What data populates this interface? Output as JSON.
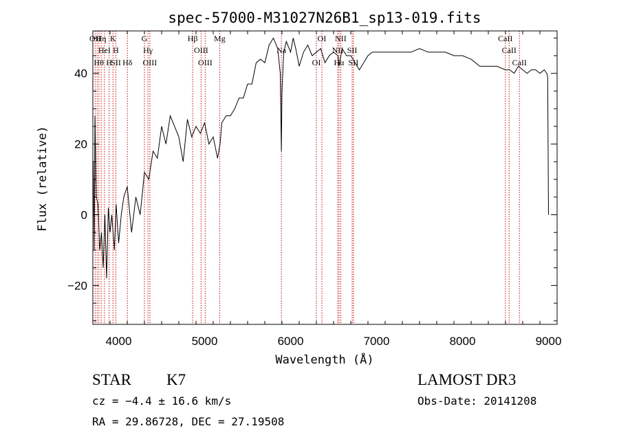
{
  "chart_data": {
    "type": "line",
    "title": "spec-57000-M31027N26B1_sp13-019.fits",
    "xlabel": "Wavelength (Å)",
    "ylabel": "Flux (relative)",
    "xlim": [
      3700,
      9100
    ],
    "ylim": [
      -31,
      52
    ],
    "xticks": [
      4000,
      5000,
      6000,
      7000,
      8000,
      9000
    ],
    "yticks": [
      -20,
      0,
      20,
      40
    ],
    "x_tick_labels": [
      "4000",
      "5000",
      "6000",
      "7000",
      "8000",
      "9000"
    ],
    "y_tick_labels": [
      "−20",
      "0",
      "20",
      "40"
    ],
    "grid": false,
    "series": [
      {
        "color": "#000000",
        "x": [
          3705,
          3715,
          3725,
          3740,
          3760,
          3780,
          3800,
          3820,
          3840,
          3860,
          3880,
          3900,
          3920,
          3950,
          3970,
          4000,
          4030,
          4060,
          4100,
          4150,
          4200,
          4250,
          4300,
          4350,
          4400,
          4450,
          4500,
          4550,
          4600,
          4650,
          4700,
          4750,
          4800,
          4850,
          4900,
          4950,
          5000,
          5050,
          5100,
          5150,
          5180,
          5200,
          5250,
          5300,
          5350,
          5400,
          5450,
          5500,
          5550,
          5600,
          5650,
          5700,
          5750,
          5800,
          5850,
          5880,
          5893,
          5900,
          5920,
          5950,
          6000,
          6030,
          6060,
          6100,
          6150,
          6200,
          6250,
          6300,
          6350,
          6400,
          6450,
          6500,
          6550,
          6563,
          6600,
          6650,
          6700,
          6750,
          6800,
          6850,
          6900,
          6950,
          7000,
          7100,
          7200,
          7300,
          7400,
          7500,
          7600,
          7700,
          7800,
          7900,
          8000,
          8100,
          8200,
          8300,
          8400,
          8500,
          8550,
          8600,
          8650,
          8700,
          8750,
          8800,
          8850,
          8900,
          8950,
          8980,
          8990,
          9000
        ],
        "y": [
          15,
          -10,
          28,
          5,
          3,
          -10,
          -5,
          -15,
          0,
          -18,
          2,
          -5,
          0,
          -10,
          3,
          -8,
          0,
          5,
          8,
          -5,
          5,
          0,
          12,
          10,
          18,
          16,
          25,
          20,
          28,
          25,
          22,
          15,
          27,
          22,
          25,
          23,
          26,
          20,
          22,
          16,
          20,
          26,
          28,
          28,
          30,
          33,
          33,
          37,
          37,
          43,
          44,
          43,
          48,
          50,
          47,
          40,
          18,
          35,
          46,
          49,
          46,
          50,
          47,
          42,
          46,
          48,
          45,
          46,
          47,
          43,
          45,
          46,
          45,
          42,
          47,
          45,
          45,
          43,
          41,
          43,
          45,
          46,
          46,
          46,
          46,
          46,
          46,
          47,
          46,
          46,
          46,
          45,
          45,
          44,
          42,
          42,
          42,
          41,
          41,
          40,
          42,
          41,
          40,
          41,
          41,
          40,
          41,
          40,
          39,
          0
        ]
      }
    ],
    "lines": [
      {
        "x": 3727,
        "labels": [
          "OII"
        ]
      },
      {
        "x": 3750,
        "labels": [
          ""
        ]
      },
      {
        "x": 3770,
        "labels": [
          "Hθ"
        ]
      },
      {
        "x": 3797,
        "labels": [
          "Hη"
        ]
      },
      {
        "x": 3835,
        "labels": [
          "HeI"
        ]
      },
      {
        "x": 3889,
        "labels": [
          "H"
        ]
      },
      {
        "x": 3934,
        "labels": [
          "K"
        ]
      },
      {
        "x": 3968,
        "labels": [
          "H",
          "SII"
        ]
      },
      {
        "x": 4102,
        "labels": [
          "Hδ"
        ]
      },
      {
        "x": 4300,
        "labels": [
          "G"
        ]
      },
      {
        "x": 4341,
        "labels": [
          "Hγ"
        ]
      },
      {
        "x": 4363,
        "labels": [
          "OIII"
        ]
      },
      {
        "x": 4861,
        "labels": [
          "Hβ"
        ]
      },
      {
        "x": 4959,
        "labels": [
          "OIII"
        ]
      },
      {
        "x": 5007,
        "labels": [
          "OIII"
        ]
      },
      {
        "x": 5175,
        "labels": [
          "Mg"
        ]
      },
      {
        "x": 5893,
        "labels": [
          "Na"
        ]
      },
      {
        "x": 6300,
        "labels": [
          "OI"
        ]
      },
      {
        "x": 6364,
        "labels": [
          "OI"
        ]
      },
      {
        "x": 6548,
        "labels": [
          "NII"
        ]
      },
      {
        "x": 6563,
        "labels": [
          "Hα"
        ]
      },
      {
        "x": 6583,
        "labels": [
          "NII"
        ]
      },
      {
        "x": 6716,
        "labels": [
          "SII"
        ]
      },
      {
        "x": 6731,
        "labels": [
          "SII"
        ]
      },
      {
        "x": 8498,
        "labels": [
          "CaII"
        ]
      },
      {
        "x": 8542,
        "labels": [
          "CaII"
        ]
      },
      {
        "x": 8662,
        "labels": [
          "CaII"
        ]
      }
    ]
  },
  "info": {
    "object_class": "STAR",
    "subclass": "K7",
    "redshift": "cz = −4.4 ± 16.6 km/s",
    "coords": "RA =  29.86728, DEC =  27.19508",
    "survey": "LAMOST DR3",
    "obs_date": "Obs-Date: 20141208"
  }
}
